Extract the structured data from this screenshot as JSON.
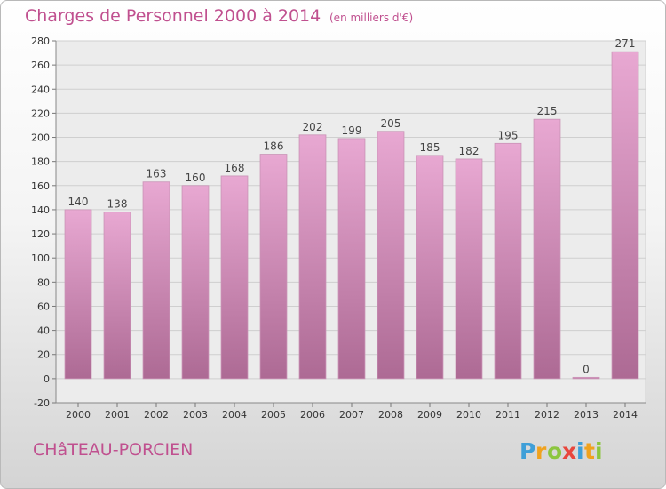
{
  "header": {
    "title": "Charges de Personnel 2000 à 2014",
    "subtitle": "(en milliers d'€)"
  },
  "footer": {
    "place": "CHâTEAU-PORCIEN",
    "logo_text": "Proxiti"
  },
  "colors": {
    "bar_top": "#e8a8d2",
    "bar_bottom": "#ad6a94",
    "accent": "#c0508f"
  },
  "chart_data": {
    "type": "bar",
    "categories": [
      "2000",
      "2001",
      "2002",
      "2003",
      "2004",
      "2005",
      "2006",
      "2007",
      "2008",
      "2009",
      "2010",
      "2011",
      "2012",
      "2013",
      "2014"
    ],
    "values": [
      140,
      138,
      163,
      160,
      168,
      186,
      202,
      199,
      205,
      185,
      182,
      195,
      215,
      0,
      271
    ],
    "title": "Charges de Personnel 2000 à 2014",
    "subtitle": "(en milliers d'€)",
    "xlabel": "",
    "ylabel": "",
    "ylim": [
      -20,
      280
    ],
    "yticks": [
      -20,
      0,
      20,
      40,
      60,
      80,
      100,
      120,
      140,
      160,
      180,
      200,
      220,
      240,
      260,
      280
    ],
    "grid": true,
    "data_labels": true
  }
}
